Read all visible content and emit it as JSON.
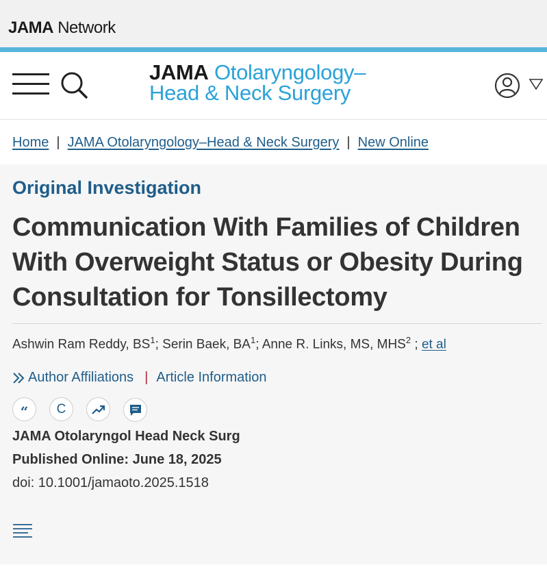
{
  "network": {
    "brand": "JAMA",
    "network_word": "Network"
  },
  "journal": {
    "line1_brand": "JAMA",
    "line1_rest": " Otolaryngology–",
    "line2": "Head & Neck Surgery"
  },
  "icons": {
    "menu": "hamburger-icon",
    "search": "search-icon",
    "user": "user-icon",
    "caret": "caret-down-icon",
    "affiliations": "chevron-double-right-icon",
    "cite": "quote-icon",
    "permissions": "copyright-icon",
    "metrics": "trending-up-icon",
    "comment": "comment-icon",
    "toc": "table-of-contents-icon"
  },
  "breadcrumb": {
    "items": [
      "Home",
      "JAMA Otolaryngology–Head & Neck Surgery",
      "New Online"
    ],
    "separator": "|"
  },
  "article": {
    "type": "Original Investigation",
    "title": "Communication With Families of Children With Overweight Status or Obesity During Consultation for Tonsillectomy",
    "authors": [
      {
        "name": "Ashwin Ram Reddy, BS",
        "affil": "1"
      },
      {
        "name": "Serin Baek, BA",
        "affil": "1"
      },
      {
        "name": "Anne R. Links, MS, MHS",
        "affil": "2"
      }
    ],
    "et_al": "et al",
    "author_affiliations": "Author Affiliations",
    "link_separator": "|",
    "article_information": "Article Information",
    "cite_label": "“",
    "permissions_label": "C",
    "journal_abbrev": "JAMA Otolaryngol Head Neck Surg",
    "published": "Published Online: June 18, 2025",
    "doi": "doi: 10.1001/jamaoto.2025.1518"
  },
  "colors": {
    "accent_blue": "#1f5d8a",
    "brand_cyan": "#2aa2d8",
    "rule_blue": "#58b6dc",
    "separator_red": "#b3263c"
  }
}
